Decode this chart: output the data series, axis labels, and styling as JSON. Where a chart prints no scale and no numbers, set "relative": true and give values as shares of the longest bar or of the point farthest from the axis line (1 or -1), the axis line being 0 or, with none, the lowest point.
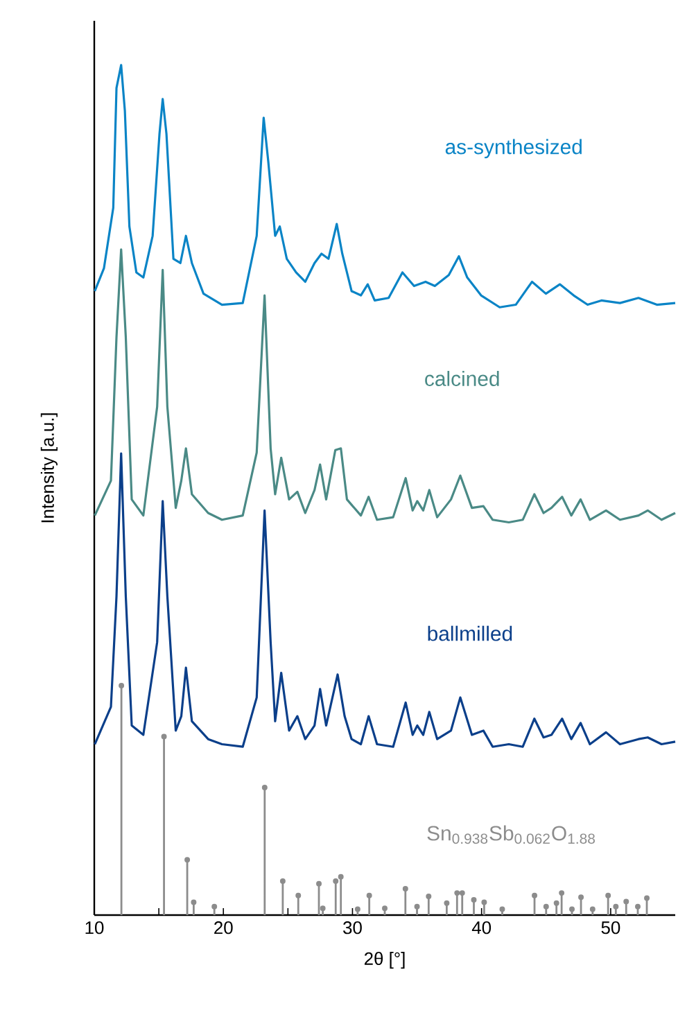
{
  "chart_data": {
    "type": "line",
    "xlabel": "2θ [°]",
    "ylabel": "Intensity [a.u.]",
    "relative": true,
    "xlim": [
      10,
      55
    ],
    "xticks": [
      10,
      20,
      30,
      40,
      50
    ],
    "series": [
      {
        "name": "as-synthesized",
        "color": "#0a84c6",
        "x": [
          10.04,
          10.75,
          11.47,
          11.72,
          12.08,
          12.37,
          12.72,
          13.26,
          13.8,
          14.52,
          15.05,
          15.3,
          15.59,
          16.13,
          16.67,
          17.1,
          17.56,
          18.46,
          19.89,
          21.5,
          22.58,
          23.12,
          23.48,
          24.01,
          24.37,
          24.91,
          25.63,
          26.34,
          27.06,
          27.6,
          28.14,
          28.78,
          29.21,
          29.93,
          30.65,
          31.18,
          31.72,
          32.8,
          33.87,
          34.77,
          35.66,
          36.38,
          37.46,
          38.24,
          38.89,
          39.96,
          41.4,
          42.65,
          43.91,
          44.98,
          46.06,
          47.13,
          48.21,
          49.28,
          50.72,
          52.15,
          53.58,
          55.0
        ],
        "values": [
          0.734,
          0.761,
          0.832,
          0.973,
          1.0,
          0.946,
          0.81,
          0.756,
          0.75,
          0.799,
          0.919,
          0.96,
          0.919,
          0.772,
          0.767,
          0.799,
          0.767,
          0.731,
          0.718,
          0.72,
          0.799,
          0.938,
          0.886,
          0.799,
          0.81,
          0.772,
          0.756,
          0.745,
          0.767,
          0.778,
          0.772,
          0.813,
          0.778,
          0.734,
          0.729,
          0.742,
          0.723,
          0.726,
          0.756,
          0.74,
          0.745,
          0.74,
          0.753,
          0.775,
          0.75,
          0.729,
          0.715,
          0.718,
          0.745,
          0.731,
          0.742,
          0.729,
          0.718,
          0.723,
          0.72,
          0.726,
          0.718,
          0.72
        ]
      },
      {
        "name": "calcined",
        "color": "#4a8a86",
        "x": [
          10.04,
          11.29,
          11.72,
          12.08,
          12.44,
          12.9,
          13.8,
          14.87,
          15.3,
          15.66,
          16.31,
          16.74,
          17.1,
          17.56,
          18.82,
          19.89,
          21.5,
          22.58,
          23.19,
          23.66,
          24.01,
          24.48,
          25.09,
          25.73,
          26.34,
          27.06,
          27.49,
          27.96,
          28.67,
          29.1,
          29.57,
          30.65,
          31.25,
          31.9,
          33.15,
          34.12,
          34.66,
          35.02,
          35.48,
          35.95,
          36.56,
          37.63,
          38.35,
          39.25,
          40.14,
          40.86,
          42.11,
          43.19,
          44.09,
          44.8,
          45.41,
          46.24,
          46.95,
          47.67,
          48.39,
          49.64,
          50.72,
          52.15,
          52.87,
          53.94,
          55.0
        ],
        "values": [
          0.47,
          0.511,
          0.68,
          0.783,
          0.68,
          0.489,
          0.47,
          0.598,
          0.759,
          0.598,
          0.479,
          0.511,
          0.549,
          0.495,
          0.473,
          0.465,
          0.47,
          0.544,
          0.729,
          0.549,
          0.495,
          0.538,
          0.489,
          0.498,
          0.473,
          0.5,
          0.53,
          0.489,
          0.547,
          0.549,
          0.489,
          0.47,
          0.492,
          0.465,
          0.468,
          0.514,
          0.476,
          0.487,
          0.476,
          0.5,
          0.468,
          0.489,
          0.517,
          0.479,
          0.481,
          0.465,
          0.462,
          0.465,
          0.495,
          0.473,
          0.479,
          0.492,
          0.47,
          0.489,
          0.465,
          0.476,
          0.465,
          0.47,
          0.476,
          0.465,
          0.473
        ]
      },
      {
        "name": "ballmilled",
        "color": "#0b3f8a",
        "x": [
          10.04,
          11.29,
          11.72,
          12.08,
          12.44,
          12.9,
          13.8,
          14.87,
          15.3,
          15.66,
          16.31,
          16.74,
          17.1,
          17.56,
          18.82,
          19.89,
          21.5,
          22.58,
          23.19,
          23.66,
          24.01,
          24.48,
          25.09,
          25.73,
          26.34,
          27.06,
          27.49,
          27.96,
          28.85,
          29.39,
          29.93,
          30.65,
          31.25,
          31.9,
          33.15,
          34.12,
          34.66,
          35.02,
          35.48,
          35.95,
          36.56,
          37.63,
          38.35,
          39.25,
          40.14,
          40.86,
          42.11,
          43.19,
          44.09,
          44.8,
          45.41,
          46.24,
          46.95,
          47.67,
          48.39,
          49.64,
          50.72,
          52.15,
          52.87,
          53.94,
          55.0
        ],
        "values": [
          0.201,
          0.245,
          0.375,
          0.543,
          0.375,
          0.223,
          0.212,
          0.321,
          0.487,
          0.375,
          0.217,
          0.234,
          0.291,
          0.228,
          0.207,
          0.201,
          0.198,
          0.256,
          0.476,
          0.321,
          0.228,
          0.285,
          0.217,
          0.234,
          0.207,
          0.223,
          0.266,
          0.223,
          0.283,
          0.234,
          0.207,
          0.201,
          0.234,
          0.201,
          0.198,
          0.25,
          0.212,
          0.223,
          0.212,
          0.239,
          0.207,
          0.217,
          0.256,
          0.212,
          0.217,
          0.198,
          0.201,
          0.198,
          0.231,
          0.209,
          0.212,
          0.231,
          0.207,
          0.226,
          0.201,
          0.215,
          0.201,
          0.207,
          0.209,
          0.201,
          0.204
        ]
      },
      {
        "name": "Sn$_{0.938}$Sb$_{0.062}$O$_{1.88}$",
        "type": "lollipop",
        "marker": "circle",
        "color": "#8c8c8c",
        "x": [
          12.1,
          15.4,
          17.2,
          17.7,
          19.3,
          23.2,
          24.6,
          25.8,
          27.4,
          27.7,
          28.7,
          29.1,
          30.4,
          31.3,
          32.5,
          34.1,
          35.0,
          35.9,
          37.3,
          38.1,
          38.5,
          39.4,
          40.2,
          41.6,
          44.1,
          45.0,
          45.8,
          46.2,
          47.0,
          47.7,
          48.6,
          49.8,
          50.4,
          51.2,
          52.1,
          52.8
        ],
        "values": [
          0.27,
          0.21,
          0.065,
          0.015,
          0.01,
          0.15,
          0.04,
          0.023,
          0.037,
          0.008,
          0.04,
          0.045,
          0.007,
          0.023,
          0.008,
          0.031,
          0.01,
          0.022,
          0.014,
          0.026,
          0.026,
          0.018,
          0.015,
          0.007,
          0.023,
          0.01,
          0.014,
          0.026,
          0.007,
          0.021,
          0.007,
          0.023,
          0.01,
          0.016,
          0.01,
          0.02
        ]
      }
    ]
  }
}
